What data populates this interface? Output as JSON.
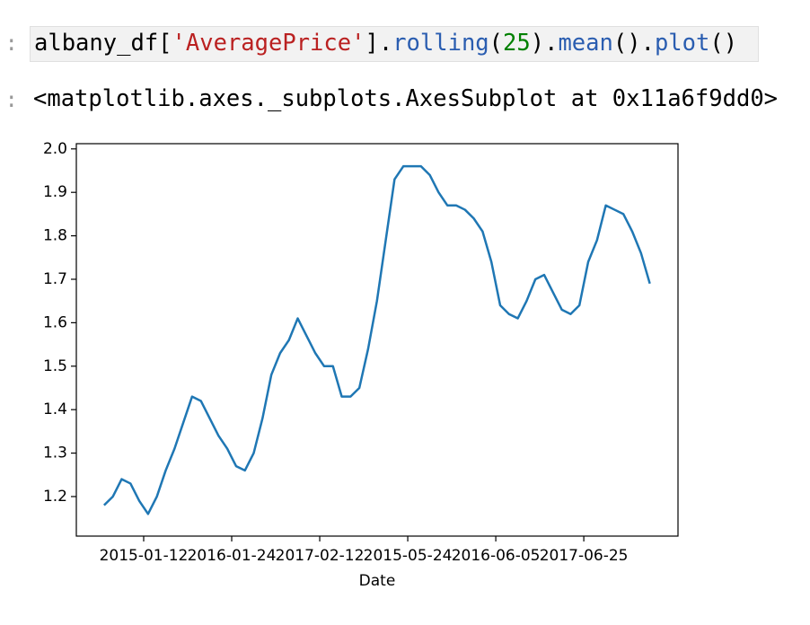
{
  "cell": {
    "prompt_in": ":",
    "code_tokens": [
      {
        "text": "albany_df[",
        "color": "#000000"
      },
      {
        "text": "'AveragePrice'",
        "color": "#ba2121"
      },
      {
        "text": "].",
        "color": "#000000"
      },
      {
        "text": "rolling",
        "color": "#2a5db0"
      },
      {
        "text": "(",
        "color": "#000000"
      },
      {
        "text": "25",
        "color": "#008000"
      },
      {
        "text": ").",
        "color": "#000000"
      },
      {
        "text": "mean",
        "color": "#2a5db0"
      },
      {
        "text": "().",
        "color": "#000000"
      },
      {
        "text": "plot",
        "color": "#2a5db0"
      },
      {
        "text": "()",
        "color": "#000000"
      }
    ],
    "prompt_out": ":",
    "output": "<matplotlib.axes._subplots.AxesSubplot at 0x11a6f9dd0>"
  },
  "chart_data": {
    "type": "line",
    "xlabel": "Date",
    "color": "#1f77b4",
    "x": [
      11,
      13,
      15,
      17,
      19,
      21,
      23,
      25,
      27,
      29,
      31,
      33,
      35,
      37,
      39,
      41,
      43,
      45,
      47,
      49,
      51,
      53,
      55,
      57,
      59,
      61,
      63,
      65,
      67,
      69,
      71,
      73,
      75,
      77,
      79,
      81,
      83,
      85,
      87,
      89,
      91,
      93,
      95,
      97,
      99,
      101,
      103,
      105,
      107,
      109,
      111,
      113,
      115,
      117,
      119,
      121,
      123,
      125,
      127,
      129,
      131,
      133,
      135
    ],
    "values": [
      1.18,
      1.2,
      1.24,
      1.23,
      1.19,
      1.16,
      1.2,
      1.26,
      1.31,
      1.37,
      1.43,
      1.42,
      1.38,
      1.34,
      1.31,
      1.27,
      1.26,
      1.3,
      1.38,
      1.48,
      1.53,
      1.56,
      1.61,
      1.57,
      1.53,
      1.5,
      1.5,
      1.43,
      1.43,
      1.45,
      1.54,
      1.65,
      1.79,
      1.93,
      1.96,
      1.96,
      1.96,
      1.94,
      1.9,
      1.87,
      1.87,
      1.86,
      1.84,
      1.81,
      1.74,
      1.64,
      1.62,
      1.61,
      1.65,
      1.7,
      1.71,
      1.67,
      1.63,
      1.62,
      1.64,
      1.74,
      1.79,
      1.87,
      1.86,
      1.85,
      1.81,
      1.76,
      1.69
    ],
    "xlim": [
      4.7,
      141.4
    ],
    "ylim": [
      1.109,
      2.012
    ],
    "xticks": [
      {
        "value": 20,
        "label": "2015-01-12"
      },
      {
        "value": 40,
        "label": "2016-01-24"
      },
      {
        "value": 60,
        "label": "2017-02-12"
      },
      {
        "value": 80,
        "label": "2015-05-24"
      },
      {
        "value": 100,
        "label": "2016-06-05"
      },
      {
        "value": 120,
        "label": "2017-06-25"
      }
    ],
    "yticks": [
      1.2,
      1.3,
      1.4,
      1.5,
      1.6,
      1.7,
      1.8,
      1.9,
      {
        "value": 2,
        "label": "2.0"
      }
    ]
  }
}
